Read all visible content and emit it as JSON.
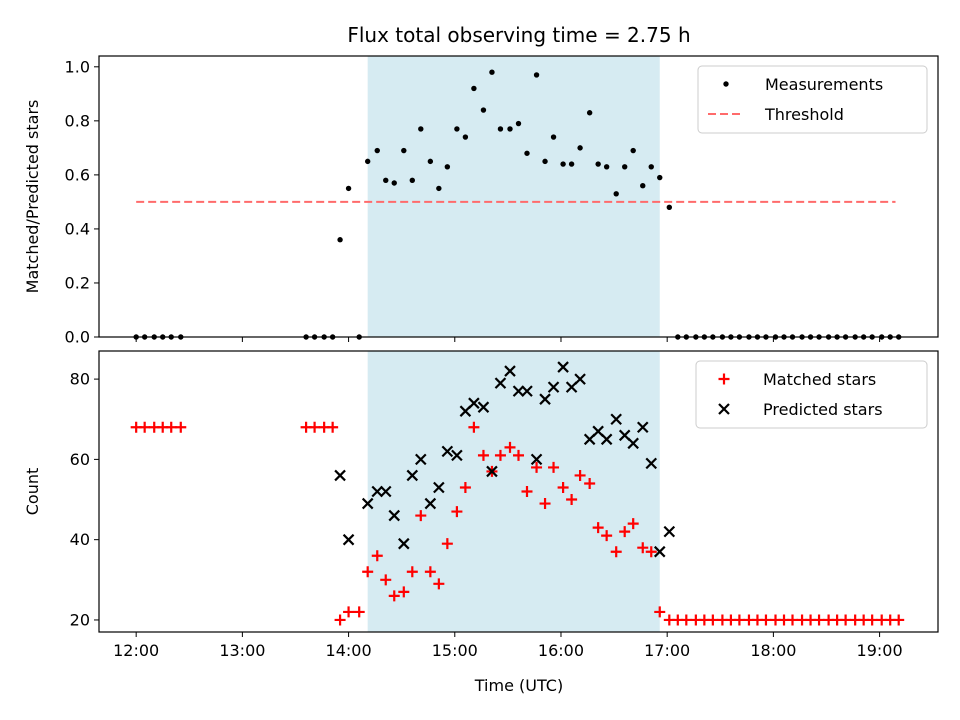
{
  "chart_data": {
    "title": "Flux total observing time = 2.75 h",
    "xlabel": "Time (UTC)",
    "xlim": [
      11.65,
      19.55
    ],
    "xticks": [
      {
        "x": 12,
        "label": "12:00"
      },
      {
        "x": 13,
        "label": "13:00"
      },
      {
        "x": 14,
        "label": "14:00"
      },
      {
        "x": 15,
        "label": "15:00"
      },
      {
        "x": 16,
        "label": "16:00"
      },
      {
        "x": 17,
        "label": "17:00"
      },
      {
        "x": 18,
        "label": "18:00"
      },
      {
        "x": 19,
        "label": "19:00"
      }
    ],
    "span": {
      "start": 14.18,
      "end": 16.93,
      "color": "#add8e6"
    },
    "panels": [
      {
        "type": "scatter",
        "ylabel": "Matched/Predicted stars",
        "ylim": [
          0,
          1.04
        ],
        "yticks": [
          {
            "y": 0,
            "label": "0.0"
          },
          {
            "y": 0.2,
            "label": "0.2"
          },
          {
            "y": 0.4,
            "label": "0.4"
          },
          {
            "y": 0.6,
            "label": "0.6"
          },
          {
            "y": 0.8,
            "label": "0.8"
          },
          {
            "y": 1.0,
            "label": "1.0"
          }
        ],
        "legend": {
          "position": "top-right",
          "entries": [
            "Measurements",
            "Threshold"
          ]
        },
        "series": [
          {
            "name": "Measurements",
            "marker": "dot",
            "color": "#000000",
            "x": [
              12.0,
              12.08,
              12.17,
              12.25,
              12.33,
              12.42,
              13.6,
              13.68,
              13.77,
              13.85,
              13.92,
              14.0,
              14.1,
              14.18,
              14.27,
              14.35,
              14.43,
              14.52,
              14.6,
              14.68,
              14.77,
              14.85,
              14.93,
              15.02,
              15.1,
              15.18,
              15.27,
              15.35,
              15.43,
              15.52,
              15.6,
              15.68,
              15.77,
              15.85,
              15.93,
              16.02,
              16.1,
              16.18,
              16.27,
              16.35,
              16.43,
              16.52,
              16.6,
              16.68,
              16.77,
              16.85,
              16.93,
              17.02,
              17.1,
              17.18,
              17.27,
              17.35,
              17.43,
              17.52,
              17.6,
              17.68,
              17.77,
              17.85,
              17.93,
              18.02,
              18.1,
              18.18,
              18.27,
              18.35,
              18.43,
              18.52,
              18.6,
              18.68,
              18.77,
              18.85,
              18.93,
              19.02,
              19.1,
              19.18
            ],
            "y": [
              0,
              0,
              0,
              0,
              0,
              0,
              0,
              0,
              0,
              0,
              0.36,
              0.55,
              0,
              0.65,
              0.69,
              0.58,
              0.57,
              0.69,
              0.58,
              0.77,
              0.65,
              0.55,
              0.63,
              0.77,
              0.74,
              0.92,
              0.84,
              0.98,
              0.77,
              0.77,
              0.79,
              0.68,
              0.97,
              0.65,
              0.74,
              0.64,
              0.64,
              0.7,
              0.83,
              0.64,
              0.63,
              0.53,
              0.63,
              0.69,
              0.56,
              0.63,
              0.59,
              0.48,
              0,
              0,
              0,
              0,
              0,
              0,
              0,
              0,
              0,
              0,
              0,
              0,
              0,
              0,
              0,
              0,
              0,
              0,
              0,
              0,
              0,
              0,
              0,
              0,
              0,
              0
            ]
          },
          {
            "name": "Threshold",
            "marker": "dashed-line",
            "color": "#ff6b6b",
            "x": [
              12.0,
              19.15
            ],
            "y": [
              0.5,
              0.5
            ]
          }
        ]
      },
      {
        "type": "scatter",
        "ylabel": "Count",
        "ylim": [
          17,
          87
        ],
        "yticks": [
          {
            "y": 20,
            "label": "20"
          },
          {
            "y": 40,
            "label": "40"
          },
          {
            "y": 60,
            "label": "60"
          },
          {
            "y": 80,
            "label": "80"
          }
        ],
        "legend": {
          "position": "top-right",
          "entries": [
            "Matched stars",
            "Predicted stars"
          ]
        },
        "series": [
          {
            "name": "Matched stars",
            "marker": "plus",
            "color": "#ff0000",
            "x": [
              12.0,
              12.08,
              12.17,
              12.25,
              12.33,
              12.42,
              13.6,
              13.68,
              13.77,
              13.85,
              13.92,
              14.0,
              14.1,
              14.18,
              14.27,
              14.35,
              14.43,
              14.52,
              14.6,
              14.68,
              14.77,
              14.85,
              14.93,
              15.02,
              15.1,
              15.18,
              15.27,
              15.35,
              15.43,
              15.52,
              15.6,
              15.68,
              15.77,
              15.85,
              15.93,
              16.02,
              16.1,
              16.18,
              16.27,
              16.35,
              16.43,
              16.52,
              16.6,
              16.68,
              16.77,
              16.85,
              16.93,
              17.02,
              17.1,
              17.18,
              17.27,
              17.35,
              17.43,
              17.52,
              17.6,
              17.68,
              17.77,
              17.85,
              17.93,
              18.02,
              18.1,
              18.18,
              18.27,
              18.35,
              18.43,
              18.52,
              18.6,
              18.68,
              18.77,
              18.85,
              18.93,
              19.02,
              19.1,
              19.18
            ],
            "y": [
              68,
              68,
              68,
              68,
              68,
              68,
              68,
              68,
              68,
              68,
              20,
              22,
              22,
              32,
              36,
              30,
              26,
              27,
              32,
              46,
              32,
              29,
              39,
              47,
              53,
              68,
              61,
              57,
              61,
              63,
              61,
              52,
              58,
              49,
              58,
              53,
              50,
              56,
              54,
              43,
              41,
              37,
              42,
              44,
              38,
              37,
              22,
              20,
              20,
              20,
              20,
              20,
              20,
              20,
              20,
              20,
              20,
              20,
              20,
              20,
              20,
              20,
              20,
              20,
              20,
              20,
              20,
              20,
              20,
              20,
              20,
              20,
              20,
              20
            ]
          },
          {
            "name": "Predicted stars",
            "marker": "x",
            "color": "#000000",
            "x": [
              13.92,
              14.0,
              14.18,
              14.27,
              14.35,
              14.43,
              14.52,
              14.6,
              14.68,
              14.77,
              14.85,
              14.93,
              15.02,
              15.1,
              15.18,
              15.27,
              15.35,
              15.43,
              15.52,
              15.6,
              15.68,
              15.77,
              15.85,
              15.93,
              16.02,
              16.1,
              16.18,
              16.27,
              16.35,
              16.43,
              16.52,
              16.6,
              16.68,
              16.77,
              16.85,
              16.93,
              17.02
            ],
            "y": [
              56,
              40,
              49,
              52,
              52,
              46,
              39,
              56,
              60,
              49,
              53,
              62,
              61,
              72,
              74,
              73,
              57,
              79,
              82,
              77,
              77,
              60,
              75,
              78,
              83,
              78,
              80,
              65,
              67,
              65,
              70,
              66,
              64,
              68,
              59,
              37,
              42
            ]
          }
        ]
      }
    ]
  }
}
